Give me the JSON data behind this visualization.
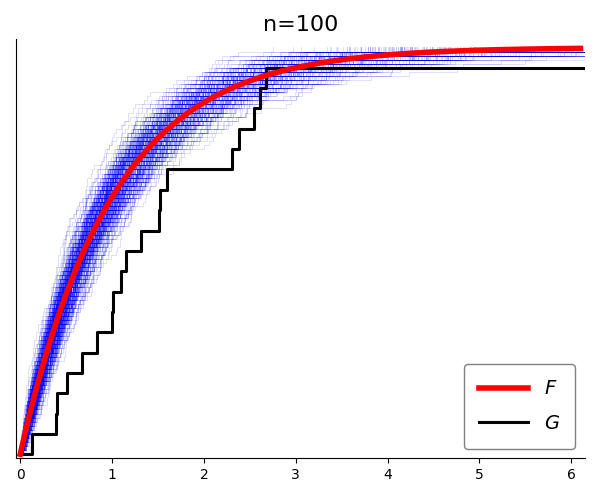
{
  "title": "n=100",
  "title_fontsize": 16,
  "n_samples": 100,
  "n_blue_curves": 300,
  "x_max": 6.1,
  "xlim": [
    -0.05,
    6.15
  ],
  "ylim": [
    -0.01,
    1.02
  ],
  "xticks": [
    0,
    1,
    2,
    3,
    4,
    5,
    6
  ],
  "rate_F": 1.0,
  "rate_G": 0.5,
  "n_G": 20,
  "blue_color": "#0000ff",
  "blue_alpha": 0.15,
  "blue_lw": 0.6,
  "red_color": "#ff0000",
  "red_lw": 4.0,
  "black_lw": 2.2,
  "legend_F_label": "$F$",
  "legend_G_label": "$G$",
  "fig_width": 6.0,
  "fig_height": 4.97,
  "dpi": 100,
  "random_seed": 42,
  "g_seed": 123
}
